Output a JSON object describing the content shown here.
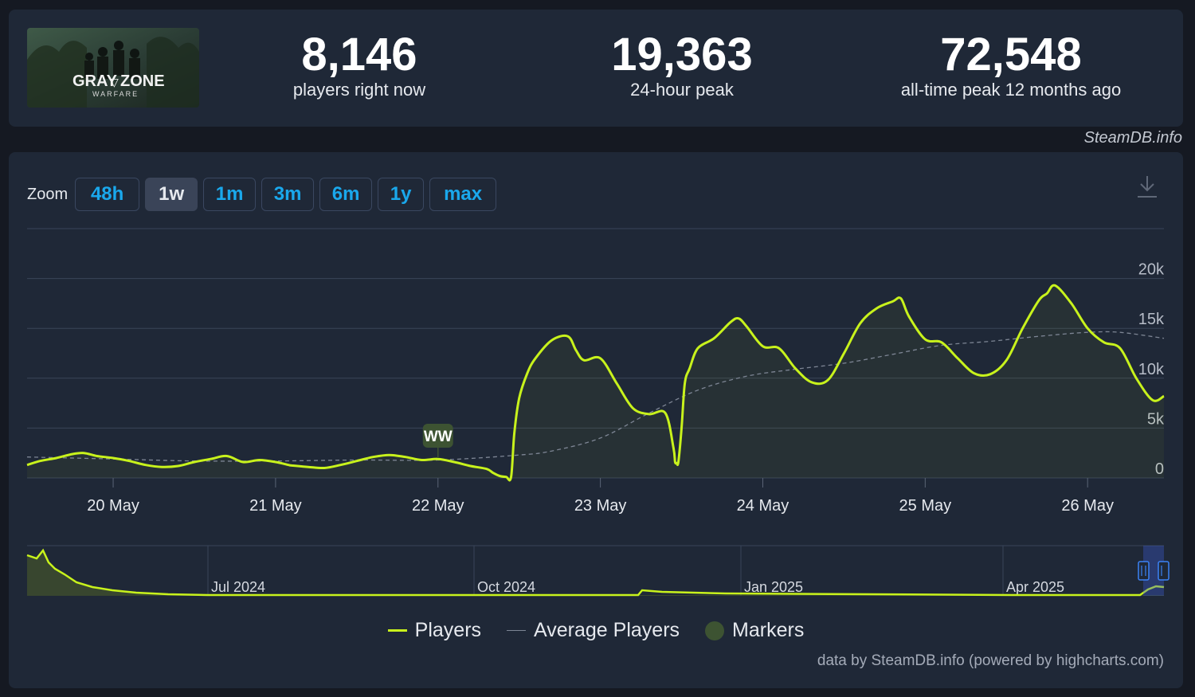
{
  "stats": {
    "players_now_value": "8,146",
    "players_now_label": "players right now",
    "peak_24h_value": "19,363",
    "peak_24h_label": "24-hour peak",
    "all_time_value": "72,548",
    "all_time_label": "all-time peak 12 months ago"
  },
  "game": {
    "title_line1": "GRAY",
    "title_line2": "ZONE",
    "subtitle": "WARFARE"
  },
  "source": "SteamDB.info",
  "zoom": {
    "label": "Zoom",
    "options": [
      "48h",
      "1w",
      "1m",
      "3m",
      "6m",
      "1y",
      "max"
    ],
    "active": "1w"
  },
  "legend": {
    "players": "Players",
    "average": "Average Players",
    "markers": "Markers"
  },
  "credits": "data by SteamDB.info (powered by highcharts.com)",
  "colors": {
    "players": "#c8f21c",
    "average": "#7d8594",
    "marker": "#3d5332",
    "accent": "#1aa8ec"
  },
  "chart_data": {
    "type": "line",
    "x_tick_labels": [
      "20 May",
      "21 May",
      "22 May",
      "23 May",
      "24 May",
      "25 May",
      "26 May"
    ],
    "y_tick_labels": [
      "0",
      "5k",
      "10k",
      "15k",
      "20k"
    ],
    "ylim": [
      0,
      25000
    ],
    "xlim": [
      -0.53,
      6.47
    ],
    "grid": true,
    "legend_position": "bottom",
    "marker": {
      "label": "WW",
      "x": 2.0
    },
    "series": [
      {
        "name": "Players",
        "x": [
          -0.53,
          -0.45,
          -0.35,
          -0.25,
          -0.18,
          -0.1,
          0,
          0.1,
          0.2,
          0.3,
          0.4,
          0.5,
          0.6,
          0.7,
          0.8,
          0.9,
          1,
          1.08,
          1.1,
          1.2,
          1.3,
          1.4,
          1.5,
          1.6,
          1.7,
          1.8,
          1.9,
          2,
          2.1,
          2.2,
          2.3,
          2.34,
          2.38,
          2.42,
          2.45,
          2.47,
          2.5,
          2.55,
          2.6,
          2.7,
          2.8,
          2.85,
          2.9,
          3,
          3.1,
          3.2,
          3.3,
          3.4,
          3.45,
          3.46,
          3.47,
          3.48,
          3.5,
          3.52,
          3.55,
          3.6,
          3.7,
          3.8,
          3.85,
          3.9,
          4,
          4.1,
          4.2,
          4.3,
          4.4,
          4.5,
          4.6,
          4.7,
          4.8,
          4.85,
          4.9,
          5,
          5.1,
          5.2,
          5.3,
          5.4,
          5.5,
          5.6,
          5.7,
          5.75,
          5.8,
          5.9,
          6,
          6.1,
          6.2,
          6.3,
          6.4,
          6.47
        ],
        "y": [
          1300,
          1700,
          2000,
          2400,
          2500,
          2200,
          2000,
          1700,
          1300,
          1100,
          1200,
          1600,
          1900,
          2200,
          1600,
          1800,
          1600,
          1300,
          1250,
          1100,
          1000,
          1300,
          1700,
          2100,
          2300,
          2100,
          1800,
          1900,
          1600,
          1200,
          900,
          500,
          200,
          100,
          80,
          4500,
          8000,
          10500,
          12000,
          13800,
          14200,
          12800,
          11800,
          12000,
          9500,
          7000,
          6400,
          6500,
          3000,
          1600,
          1500,
          1600,
          5000,
          9500,
          11000,
          13000,
          14000,
          15600,
          16000,
          15200,
          13200,
          13000,
          11000,
          9600,
          9800,
          12500,
          15500,
          17000,
          17700,
          18000,
          16200,
          13900,
          13600,
          12000,
          10500,
          10400,
          11800,
          15000,
          17800,
          18500,
          19300,
          17500,
          15000,
          13600,
          13000,
          10000,
          7800,
          8200
        ]
      },
      {
        "name": "Average Players",
        "x": [
          -0.53,
          0,
          0.5,
          1,
          1.5,
          2,
          2.5,
          2.7,
          3,
          3.3,
          3.6,
          3.9,
          4.2,
          4.5,
          4.8,
          5.1,
          5.4,
          5.7,
          6,
          6.2,
          6.47
        ],
        "y": [
          2100,
          1900,
          1700,
          1700,
          1800,
          1800,
          2300,
          2700,
          4000,
          6500,
          8800,
          10200,
          10900,
          11500,
          12400,
          13300,
          13700,
          14200,
          14600,
          14600,
          14000
        ]
      }
    ],
    "navigator": {
      "x_tick_labels": [
        "Jul 2024",
        "Oct 2024",
        "Jan 2025",
        "Apr 2025"
      ]
    }
  }
}
